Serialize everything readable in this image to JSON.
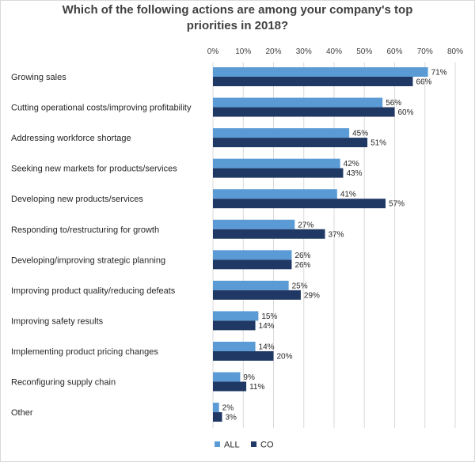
{
  "chart_data": {
    "type": "bar",
    "orientation": "horizontal",
    "title": "Which of the following actions are among your company's top priorities in 2018?",
    "title_lines": [
      "Which of the following actions are among your company's top",
      "priorities in 2018?"
    ],
    "categories": [
      "Growing sales",
      "Cutting operational costs/improving profitability",
      "Addressing workforce shortage",
      "Seeking new markets for products/services",
      "Developing new products/services",
      "Responding to/restructuring for growth",
      "Developing/improving strategic planning",
      "Improving product quality/reducing defeats",
      "Improving safety results",
      "Implementing product pricing changes",
      "Reconfiguring supply chain",
      "Other"
    ],
    "series": [
      {
        "name": "ALL",
        "color": "#5b9bd5",
        "values": [
          71,
          56,
          45,
          42,
          41,
          27,
          26,
          25,
          15,
          14,
          9,
          2
        ]
      },
      {
        "name": "CO",
        "color": "#203864",
        "values": [
          66,
          60,
          51,
          43,
          57,
          37,
          26,
          29,
          14,
          20,
          11,
          3
        ]
      }
    ],
    "xlim": [
      0,
      80
    ],
    "xticks": [
      0,
      10,
      20,
      30,
      40,
      50,
      60,
      70,
      80
    ],
    "tick_suffix": "%",
    "value_suffix": "%",
    "grid": true,
    "legend_position": "bottom-left"
  }
}
